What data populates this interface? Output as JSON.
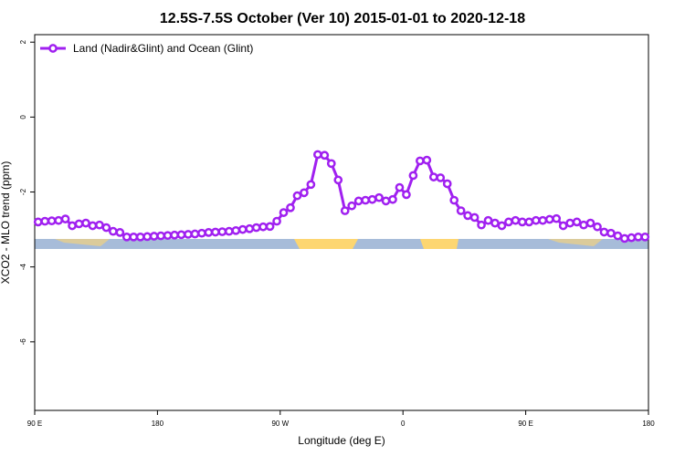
{
  "chart_data": {
    "type": "line",
    "title": "12.5S-7.5S October (Ver 10)   2015-01-01 to 2020-12-18",
    "x_label": "Longitude (deg E)",
    "y_label": "XCO2 - MLO trend (ppm)",
    "x": [
      92.5,
      97.5,
      102.5,
      107.5,
      112.5,
      117.5,
      122.5,
      127.5,
      132.5,
      137.5,
      142.5,
      147.5,
      152.5,
      157.5,
      162.5,
      167.5,
      172.5,
      177.5,
      182.5,
      187.5,
      192.5,
      197.5,
      202.5,
      207.5,
      212.5,
      217.5,
      222.5,
      227.5,
      232.5,
      237.5,
      242.5,
      247.5,
      252.5,
      257.5,
      262.5,
      267.5,
      272.5,
      277.5,
      282.5,
      287.5,
      292.5,
      297.5,
      302.5,
      307.5,
      312.5,
      317.5,
      322.5,
      327.5,
      332.5,
      337.5,
      342.5,
      347.5,
      352.5,
      357.5,
      362.5,
      367.5,
      372.5,
      377.5,
      382.5,
      387.5,
      392.5,
      397.5,
      402.5,
      407.5,
      412.5,
      417.5,
      422.5,
      427.5,
      432.5,
      437.5,
      442.5,
      447.5,
      452.5,
      457.5,
      462.5,
      467.5,
      472.5,
      477.5,
      482.5,
      487.5,
      492.5,
      497.5,
      502.5,
      507.5,
      512.5,
      517.5,
      522.5,
      527.5,
      532.5,
      537.5
    ],
    "series": [
      {
        "name": "Land (Nadir&Glint) and Ocean (Glint)",
        "color": "#a020f0",
        "values": [
          -2.8,
          -2.78,
          -2.77,
          -2.76,
          -2.72,
          -2.9,
          -2.85,
          -2.83,
          -2.9,
          -2.88,
          -2.95,
          -3.05,
          -3.08,
          -3.2,
          -3.2,
          -3.2,
          -3.19,
          -3.18,
          -3.17,
          -3.16,
          -3.15,
          -3.14,
          -3.13,
          -3.12,
          -3.1,
          -3.08,
          -3.07,
          -3.06,
          -3.05,
          -3.03,
          -3.0,
          -2.98,
          -2.95,
          -2.93,
          -2.92,
          -2.78,
          -2.55,
          -2.42,
          -2.1,
          -2.02,
          -1.8,
          -1.0,
          -1.02,
          -1.24,
          -1.68,
          -2.5,
          -2.37,
          -2.24,
          -2.22,
          -2.2,
          -2.15,
          -2.24,
          -2.2,
          -1.88,
          -2.07,
          -1.56,
          -1.17,
          -1.15,
          -1.6,
          -1.62,
          -1.78,
          -2.22,
          -2.5,
          -2.63,
          -2.68,
          -2.88,
          -2.76,
          -2.83,
          -2.9,
          -2.8,
          -2.76,
          -2.8,
          -2.8,
          -2.76,
          -2.76,
          -2.73,
          -2.71,
          -2.9,
          -2.83,
          -2.8,
          -2.88,
          -2.83,
          -2.93,
          -3.07,
          -3.1,
          -3.17,
          -3.24,
          -3.22,
          -3.2,
          -3.2
        ]
      }
    ],
    "xlim": [
      90,
      540
    ],
    "xticks": [
      {
        "value": 90,
        "label": "90 E"
      },
      {
        "value": 180,
        "label": "180"
      },
      {
        "value": 270,
        "label": "90 W"
      },
      {
        "value": 360,
        "label": "0"
      },
      {
        "value": 450,
        "label": "90 E"
      },
      {
        "value": 540,
        "label": "180"
      }
    ],
    "ylim": [
      -7.83,
      2.2
    ],
    "yticks": [
      2,
      0,
      -2,
      -4,
      -6
    ],
    "legend": "top-left"
  }
}
